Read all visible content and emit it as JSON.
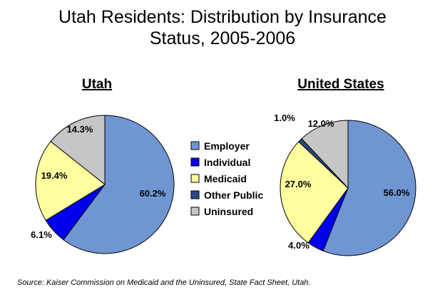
{
  "title_line1": "Utah Residents: Distribution by Insurance",
  "title_line2": "Status, 2005-2006",
  "source": "Source: Kaiser Commission on Medicaid and the Uninsured, State Fact Sheet, Utah.",
  "colors": {
    "Employer": "#6f96d2",
    "Individual": "#0000ee",
    "Medicaid": "#ffffa0",
    "Other Public": "#2a4a82",
    "Uninsured": "#c6c6c6"
  },
  "chart_data": [
    {
      "type": "pie",
      "title": "Utah",
      "categories": [
        "Employer",
        "Individual",
        "Medicaid",
        "Other Public",
        "Uninsured"
      ],
      "values": [
        60.2,
        6.1,
        19.4,
        0,
        14.3
      ],
      "labels": [
        "60.2%",
        "6.1%",
        "19.4%",
        "",
        "14.3%"
      ],
      "legend": "center"
    },
    {
      "type": "pie",
      "title": "United States",
      "categories": [
        "Employer",
        "Individual",
        "Medicaid",
        "Other Public",
        "Uninsured"
      ],
      "values": [
        56.0,
        4.0,
        27.0,
        1.0,
        12.0
      ],
      "labels": [
        "56.0%",
        "4.0%",
        "27.0%",
        "1.0%",
        "12.0%"
      ],
      "legend": "center"
    }
  ]
}
